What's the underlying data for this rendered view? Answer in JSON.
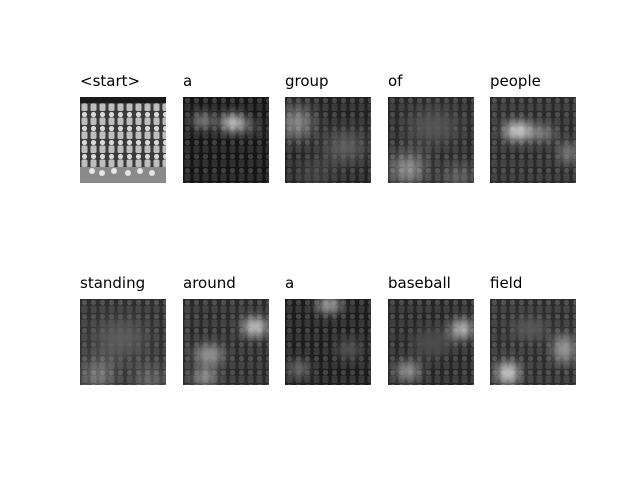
{
  "figure": {
    "rows": [
      {
        "cells": [
          {
            "word": "<start>",
            "kind": "original"
          },
          {
            "word": "a",
            "kind": "attention"
          },
          {
            "word": "group",
            "kind": "attention"
          },
          {
            "word": "of",
            "kind": "attention"
          },
          {
            "word": "people",
            "kind": "attention"
          }
        ]
      },
      {
        "cells": [
          {
            "word": "standing",
            "kind": "attention"
          },
          {
            "word": "around",
            "kind": "attention"
          },
          {
            "word": "a",
            "kind": "attention"
          },
          {
            "word": "baseball",
            "kind": "attention"
          },
          {
            "word": "field",
            "kind": "attention"
          }
        ]
      }
    ]
  }
}
